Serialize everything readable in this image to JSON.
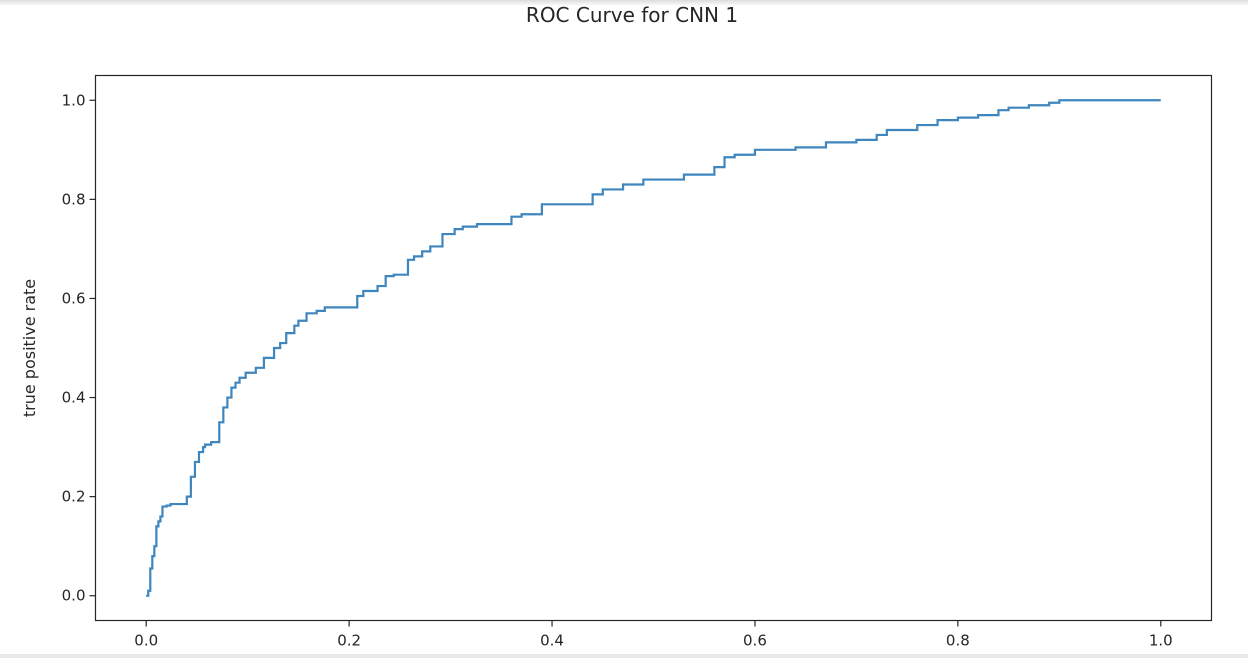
{
  "chart_data": {
    "type": "line",
    "title": "ROC Curve for CNN 1",
    "xlabel": "",
    "ylabel": "true positive rate",
    "xlim": [
      -0.05,
      1.05
    ],
    "ylim": [
      -0.05,
      1.05
    ],
    "xticks": [
      "0.0",
      "0.2",
      "0.4",
      "0.6",
      "0.8",
      "1.0"
    ],
    "yticks": [
      "0.0",
      "0.2",
      "0.4",
      "0.6",
      "0.8",
      "1.0"
    ],
    "grid": false,
    "line_color": "#3e86bd",
    "series": [
      {
        "x": [
          0.0,
          0.002,
          0.004,
          0.006,
          0.008,
          0.01,
          0.012,
          0.014,
          0.016,
          0.02,
          0.024,
          0.04,
          0.044,
          0.048,
          0.052,
          0.056,
          0.058,
          0.064,
          0.072,
          0.076,
          0.08,
          0.084,
          0.088,
          0.092,
          0.098,
          0.108,
          0.116,
          0.126,
          0.132,
          0.138,
          0.146,
          0.15,
          0.158,
          0.168,
          0.176,
          0.19,
          0.208,
          0.214,
          0.228,
          0.236,
          0.244,
          0.258,
          0.264,
          0.272,
          0.28,
          0.292,
          0.304,
          0.312,
          0.326,
          0.36,
          0.37,
          0.39,
          0.4,
          0.44,
          0.45,
          0.47,
          0.49,
          0.53,
          0.56,
          0.57,
          0.58,
          0.6,
          0.64,
          0.67,
          0.7,
          0.72,
          0.73,
          0.76,
          0.78,
          0.8,
          0.82,
          0.84,
          0.85,
          0.87,
          0.89,
          0.9,
          0.91,
          0.96,
          0.98,
          1.0
        ],
        "y": [
          0.0,
          0.01,
          0.055,
          0.08,
          0.1,
          0.14,
          0.15,
          0.16,
          0.18,
          0.182,
          0.185,
          0.2,
          0.24,
          0.27,
          0.29,
          0.3,
          0.305,
          0.31,
          0.35,
          0.38,
          0.4,
          0.42,
          0.43,
          0.44,
          0.45,
          0.46,
          0.48,
          0.5,
          0.51,
          0.53,
          0.545,
          0.555,
          0.57,
          0.575,
          0.582,
          0.582,
          0.605,
          0.615,
          0.625,
          0.645,
          0.648,
          0.678,
          0.685,
          0.695,
          0.705,
          0.73,
          0.74,
          0.745,
          0.75,
          0.765,
          0.77,
          0.79,
          0.79,
          0.81,
          0.82,
          0.83,
          0.84,
          0.85,
          0.865,
          0.885,
          0.89,
          0.9,
          0.905,
          0.915,
          0.92,
          0.93,
          0.94,
          0.95,
          0.96,
          0.965,
          0.97,
          0.98,
          0.985,
          0.99,
          0.995,
          1.0,
          1.0,
          1.0,
          1.0,
          1.0
        ]
      }
    ]
  }
}
